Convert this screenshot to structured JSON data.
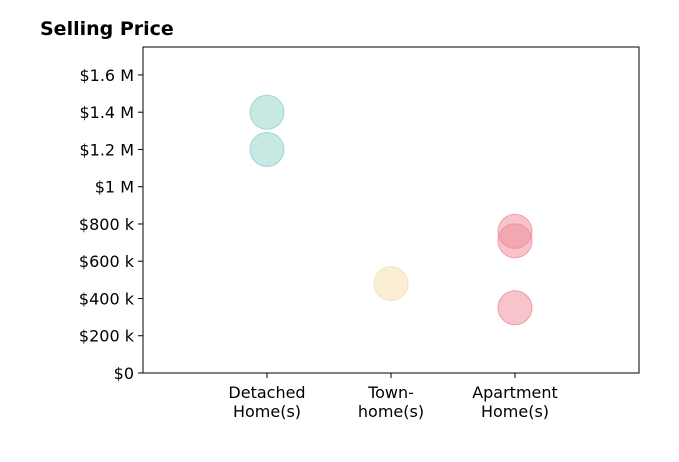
{
  "chart_data": {
    "type": "scatter",
    "title": "Selling Price",
    "xlabel": "",
    "ylabel": "",
    "categories": [
      [
        "Detached",
        "Home(s)"
      ],
      [
        "Town-",
        "home(s)"
      ],
      [
        "Apartment",
        "Home(s)"
      ]
    ],
    "ylim": [
      0,
      1750000
    ],
    "yticks": [
      0,
      200000,
      400000,
      600000,
      800000,
      1000000,
      1200000,
      1400000,
      1600000
    ],
    "ytick_labels": [
      "$0",
      "$200 k",
      "$400 k",
      "$600 k",
      "$800 k",
      "$1 M",
      "$1.2 M",
      "$1.4 M",
      "$1.6 M"
    ],
    "grid": false,
    "series": [
      {
        "category": 0,
        "color": "#8fd1c8",
        "values": [
          1400000,
          1200000
        ]
      },
      {
        "category": 1,
        "color": "#f5deac",
        "values": [
          480000
        ]
      },
      {
        "category": 2,
        "color": "#f08a9a",
        "values": [
          760000,
          710000,
          350000
        ]
      }
    ]
  }
}
